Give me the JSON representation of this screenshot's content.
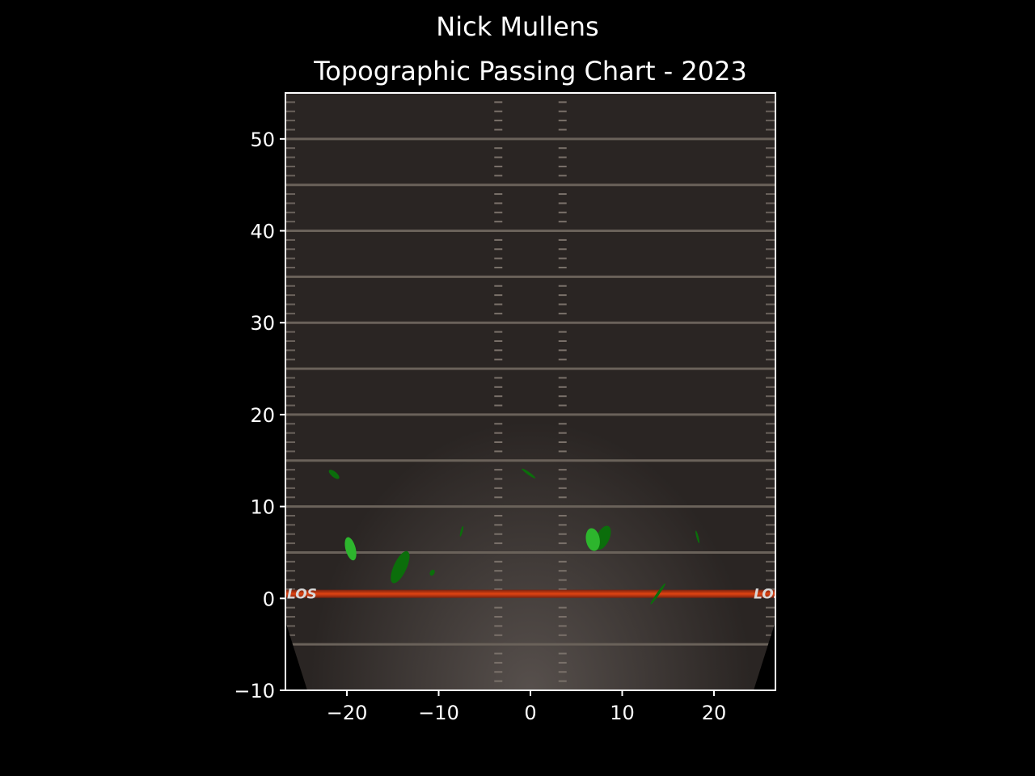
{
  "figure": {
    "suptitle": "Nick Mullens",
    "background": "#000000",
    "text_color": "#ffffff"
  },
  "chart_data": {
    "type": "heatmap",
    "title": "Topographic Passing Chart - 2023",
    "xlabel": "",
    "ylabel": "",
    "xlim": [
      -26.7,
      26.7
    ],
    "ylim": [
      -10,
      55
    ],
    "xticks": [
      -20,
      -10,
      0,
      10,
      20
    ],
    "yticks": [
      -10,
      0,
      10,
      20,
      30,
      40,
      50
    ],
    "grid": false,
    "field": {
      "turf_color": "#2a2523",
      "yard_line_color": "#6a625a",
      "los_color": "#d03a10",
      "line_of_scrimmage_y": 0.5,
      "yard_lines_y": [
        -5,
        5,
        10,
        15,
        20,
        25,
        30,
        35,
        40,
        45,
        50
      ],
      "hash_x": [
        -3.5,
        3.5
      ],
      "sideline_x": [
        -26.7,
        26.7
      ],
      "los_label": "LOS"
    },
    "density_colors": {
      "dark": "#0b6e0b",
      "light": "#2db52d"
    },
    "density_regions": [
      {
        "x": -21.4,
        "y": 13.5,
        "rx": 0.7,
        "ry": 0.3,
        "angle": 40,
        "level": "dark"
      },
      {
        "x": -0.2,
        "y": 13.6,
        "rx": 0.9,
        "ry": 0.15,
        "angle": 35,
        "level": "dark"
      },
      {
        "x": -19.6,
        "y": 5.4,
        "rx": 0.55,
        "ry": 1.3,
        "angle": -15,
        "level": "light"
      },
      {
        "x": -7.5,
        "y": 7.3,
        "rx": 0.12,
        "ry": 0.6,
        "angle": 15,
        "level": "dark"
      },
      {
        "x": -14.2,
        "y": 3.4,
        "rx": 0.7,
        "ry": 1.9,
        "angle": 25,
        "level": "dark"
      },
      {
        "x": -10.7,
        "y": 2.8,
        "rx": 0.25,
        "ry": 0.35,
        "angle": 30,
        "level": "dark"
      },
      {
        "x": 7.9,
        "y": 6.6,
        "rx": 0.7,
        "ry": 1.4,
        "angle": 25,
        "level": "dark"
      },
      {
        "x": 6.8,
        "y": 6.4,
        "rx": 0.75,
        "ry": 1.25,
        "angle": -10,
        "level": "light"
      },
      {
        "x": 18.2,
        "y": 6.7,
        "rx": 0.12,
        "ry": 0.7,
        "angle": -15,
        "level": "dark"
      },
      {
        "x": 13.9,
        "y": 0.5,
        "rx": 0.15,
        "ry": 1.4,
        "angle": 35,
        "level": "dark"
      }
    ]
  }
}
